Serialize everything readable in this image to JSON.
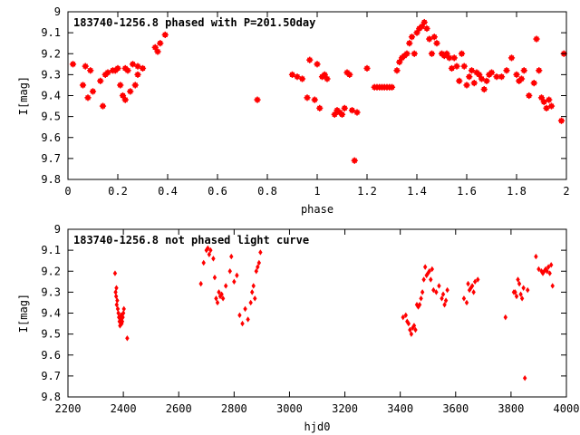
{
  "chart_data": [
    {
      "type": "scatter",
      "title": "183740-1256.8 phased with P=201.50day",
      "xlabel": "phase",
      "ylabel": "I[mag]",
      "xlim": [
        0,
        2
      ],
      "ylim": [
        9.8,
        9
      ],
      "y_inverted": true,
      "grid": false,
      "legend": "none",
      "x_ticks": [
        "0",
        "0.2",
        "0.4",
        "0.6",
        "0.8",
        "1",
        "1.2",
        "1.4",
        "1.6",
        "1.8",
        "2"
      ],
      "y_ticks": [
        "9",
        "9.1",
        "9.2",
        "9.3",
        "9.4",
        "9.5",
        "9.6",
        "9.7",
        "9.8"
      ],
      "marker_color": "#ff0000",
      "marker": "plus-square",
      "series": [
        {
          "x": [
            0.02,
            0.06,
            0.07,
            0.08,
            0.09,
            0.1,
            0.13,
            0.14,
            0.15,
            0.16,
            0.18,
            0.19,
            0.2,
            0.21,
            0.22,
            0.23,
            0.23,
            0.24,
            0.25,
            0.26,
            0.27,
            0.28,
            0.28,
            0.3,
            0.35,
            0.36,
            0.37,
            0.39,
            0.76,
            0.9,
            0.92,
            0.94,
            0.96,
            0.97,
            0.99,
            1.0,
            1.01,
            1.02,
            1.03,
            1.04,
            1.07,
            1.08,
            1.09,
            1.1,
            1.11,
            1.12,
            1.13,
            1.14,
            1.15,
            1.16,
            1.2,
            1.23,
            1.24,
            1.25,
            1.26,
            1.27,
            1.28,
            1.29,
            1.3,
            1.32,
            1.33,
            1.34,
            1.35,
            1.36,
            1.37,
            1.38,
            1.39,
            1.4,
            1.41,
            1.42,
            1.43,
            1.44,
            1.45,
            1.46,
            1.47,
            1.48,
            1.5,
            1.51,
            1.52,
            1.53,
            1.54,
            1.55,
            1.56,
            1.57,
            1.58,
            1.59,
            1.6,
            1.61,
            1.62,
            1.63,
            1.64,
            1.65,
            1.66,
            1.67,
            1.68,
            1.69,
            1.7,
            1.72,
            1.74,
            1.76,
            1.78,
            1.8,
            1.81,
            1.82,
            1.83,
            1.85,
            1.87,
            1.88,
            1.89,
            1.9,
            1.91,
            1.92,
            1.93,
            1.94,
            1.98,
            1.99
          ],
          "y": [
            9.25,
            9.35,
            9.26,
            9.41,
            9.28,
            9.38,
            9.33,
            9.45,
            9.3,
            9.29,
            9.28,
            9.28,
            9.27,
            9.35,
            9.4,
            9.42,
            9.27,
            9.28,
            9.38,
            9.25,
            9.35,
            9.26,
            9.3,
            9.27,
            9.17,
            9.19,
            9.15,
            9.11,
            9.42,
            9.3,
            9.31,
            9.32,
            9.41,
            9.23,
            9.42,
            9.25,
            9.46,
            9.31,
            9.3,
            9.32,
            9.49,
            9.47,
            9.48,
            9.49,
            9.46,
            9.29,
            9.3,
            9.47,
            9.71,
            9.48,
            9.27,
            9.36,
            9.36,
            9.36,
            9.36,
            9.36,
            9.36,
            9.36,
            9.36,
            9.28,
            9.24,
            9.22,
            9.21,
            9.2,
            9.15,
            9.12,
            9.2,
            9.1,
            9.08,
            9.07,
            9.05,
            9.08,
            9.13,
            9.2,
            9.12,
            9.15,
            9.2,
            9.21,
            9.2,
            9.22,
            9.27,
            9.22,
            9.26,
            9.33,
            9.2,
            9.26,
            9.35,
            9.31,
            9.28,
            9.34,
            9.29,
            9.3,
            9.32,
            9.37,
            9.33,
            9.3,
            9.29,
            9.31,
            9.31,
            9.28,
            9.22,
            9.3,
            9.33,
            9.32,
            9.28,
            9.4,
            9.34,
            9.13,
            9.28,
            9.41,
            9.43,
            9.46,
            9.42,
            9.45,
            9.52,
            9.2
          ]
        }
      ]
    },
    {
      "type": "scatter",
      "title": "183740-1256.8 not phased light curve",
      "xlabel": "hjd0",
      "ylabel": "I[mag]",
      "xlim": [
        2200,
        4000
      ],
      "ylim": [
        9.8,
        9
      ],
      "y_inverted": true,
      "grid": false,
      "legend": "none",
      "x_ticks": [
        "2200",
        "2400",
        "2600",
        "2800",
        "3000",
        "3200",
        "3400",
        "3600",
        "3800",
        "4000"
      ],
      "y_ticks": [
        "9",
        "9.1",
        "9.2",
        "9.3",
        "9.4",
        "9.5",
        "9.6",
        "9.7",
        "9.8"
      ],
      "marker_color": "#ff0000",
      "marker": "diamond",
      "series": [
        {
          "x": [
            2370,
            2372,
            2374,
            2375,
            2376,
            2378,
            2380,
            2382,
            2384,
            2386,
            2388,
            2390,
            2392,
            2394,
            2396,
            2398,
            2400,
            2402,
            2414,
            2680,
            2690,
            2700,
            2705,
            2710,
            2715,
            2725,
            2730,
            2735,
            2740,
            2745,
            2750,
            2755,
            2760,
            2770,
            2785,
            2790,
            2800,
            2810,
            2820,
            2830,
            2840,
            2850,
            2860,
            2865,
            2870,
            2875,
            2880,
            2885,
            2890,
            2895,
            3410,
            3420,
            3425,
            3430,
            3435,
            3440,
            3445,
            3450,
            3455,
            3460,
            3465,
            3470,
            3475,
            3480,
            3485,
            3490,
            3495,
            3500,
            3505,
            3510,
            3515,
            3520,
            3530,
            3540,
            3550,
            3555,
            3560,
            3565,
            3570,
            3630,
            3640,
            3645,
            3650,
            3655,
            3660,
            3665,
            3670,
            3680,
            3780,
            3810,
            3815,
            3820,
            3825,
            3830,
            3835,
            3840,
            3845,
            3850,
            3860,
            3890,
            3900,
            3910,
            3915,
            3920,
            3925,
            3930,
            3935,
            3940,
            3945,
            3950
          ],
          "y": [
            9.21,
            9.3,
            9.32,
            9.28,
            9.36,
            9.34,
            9.38,
            9.4,
            9.42,
            9.44,
            9.46,
            9.43,
            9.41,
            9.45,
            9.44,
            9.42,
            9.4,
            9.38,
            9.52,
            9.26,
            9.16,
            9.1,
            9.09,
            9.12,
            9.1,
            9.14,
            9.23,
            9.33,
            9.35,
            9.3,
            9.32,
            9.31,
            9.33,
            9.27,
            9.2,
            9.13,
            9.25,
            9.22,
            9.41,
            9.45,
            9.38,
            9.43,
            9.35,
            9.3,
            9.27,
            9.33,
            9.2,
            9.18,
            9.16,
            9.11,
            9.42,
            9.41,
            9.44,
            9.45,
            9.48,
            9.5,
            9.47,
            9.46,
            9.48,
            9.36,
            9.37,
            9.36,
            9.33,
            9.3,
            9.24,
            9.18,
            9.22,
            9.21,
            9.2,
            9.24,
            9.19,
            9.29,
            9.3,
            9.27,
            9.33,
            9.31,
            9.36,
            9.34,
            9.29,
            9.33,
            9.35,
            9.26,
            9.29,
            9.28,
            9.27,
            9.3,
            9.25,
            9.24,
            9.42,
            9.3,
            9.3,
            9.32,
            9.24,
            9.26,
            9.31,
            9.33,
            9.28,
            9.71,
            9.29,
            9.13,
            9.19,
            9.2,
            9.21,
            9.2,
            9.19,
            9.2,
            9.18,
            9.21,
            9.17,
            9.27
          ]
        }
      ]
    }
  ]
}
